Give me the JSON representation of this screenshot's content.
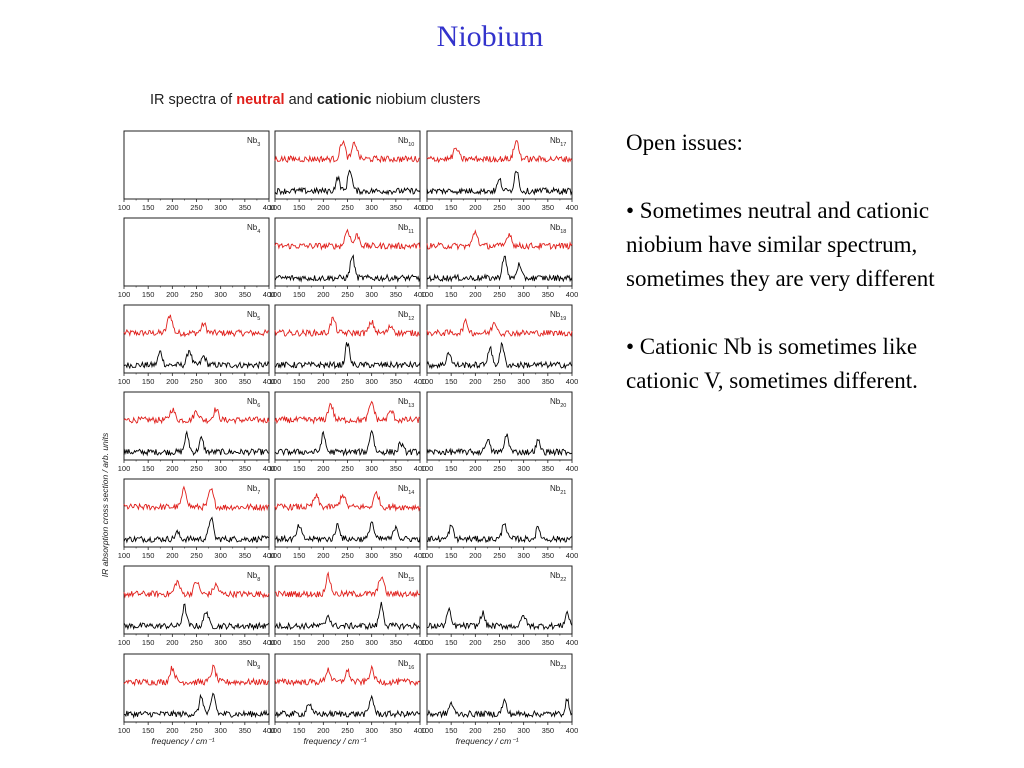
{
  "slide": {
    "title": "Niobium"
  },
  "figure": {
    "title_parts": [
      "IR spectra of ",
      "neutral",
      " and ",
      "cationic",
      " niobium clusters"
    ],
    "ylabel": "IR absorption cross section / arb. units",
    "xlabel": "frequency / cm⁻¹"
  },
  "notes": {
    "heading": "Open issues:",
    "bullets": [
      "• Sometimes neutral and cationic niobium have similar spectrum, sometimes they are very  different",
      "• Cationic Nb is sometimes like cationic V, sometimes different."
    ]
  },
  "colors": {
    "neutral": "#e0201c",
    "cationic": "#000000",
    "title": "#3333cc"
  },
  "chart_data": {
    "type": "line",
    "grid": false,
    "xlim": [
      100,
      400
    ],
    "xticks": [
      100,
      150,
      200,
      250,
      300,
      350,
      400
    ],
    "series_legend": [
      "neutral",
      "cationic"
    ],
    "panels": [
      {
        "label": "Nb",
        "n": "3",
        "neutral": false,
        "cationic": false,
        "neutral_peaks": [],
        "cationic_peaks": []
      },
      {
        "label": "Nb",
        "n": "4",
        "neutral": false,
        "cationic": false,
        "neutral_peaks": [],
        "cationic_peaks": []
      },
      {
        "label": "Nb",
        "n": "5",
        "neutral": true,
        "cationic": true,
        "neutral_peaks": [
          [
            195,
            1.0
          ],
          [
            265,
            0.5
          ]
        ],
        "cationic_peaks": [
          [
            175,
            0.6
          ],
          [
            235,
            0.7
          ],
          [
            265,
            0.4
          ]
        ]
      },
      {
        "label": "Nb",
        "n": "6",
        "neutral": true,
        "cationic": true,
        "neutral_peaks": [
          [
            200,
            0.6
          ],
          [
            250,
            0.5
          ],
          [
            290,
            0.6
          ]
        ],
        "cationic_peaks": [
          [
            230,
            0.8
          ],
          [
            260,
            0.6
          ]
        ]
      },
      {
        "label": "Nb",
        "n": "7",
        "neutral": true,
        "cationic": true,
        "neutral_peaks": [
          [
            225,
            1.0
          ],
          [
            280,
            0.95
          ]
        ],
        "cationic_peaks": [
          [
            210,
            0.3
          ],
          [
            280,
            1.0
          ]
        ]
      },
      {
        "label": "Nb",
        "n": "8",
        "neutral": true,
        "cationic": true,
        "neutral_peaks": [
          [
            210,
            0.7
          ],
          [
            250,
            0.7
          ],
          [
            290,
            0.5
          ]
        ],
        "cationic_peaks": [
          [
            225,
            0.9
          ],
          [
            270,
            0.7
          ]
        ]
      },
      {
        "label": "Nb",
        "n": "9",
        "neutral": true,
        "cationic": true,
        "neutral_peaks": [
          [
            200,
            0.8
          ],
          [
            285,
            0.8
          ]
        ],
        "cationic_peaks": [
          [
            260,
            0.8
          ],
          [
            285,
            0.9
          ]
        ]
      },
      {
        "label": "Nb",
        "n": "10",
        "neutral": true,
        "cationic": true,
        "neutral_peaks": [
          [
            240,
            1.0
          ],
          [
            265,
            0.9
          ]
        ],
        "cationic_peaks": [
          [
            230,
            0.6
          ],
          [
            255,
            1.0
          ]
        ]
      },
      {
        "label": "Nb",
        "n": "11",
        "neutral": true,
        "cationic": true,
        "neutral_peaks": [
          [
            250,
            0.9
          ],
          [
            270,
            0.6
          ]
        ],
        "cationic_peaks": [
          [
            260,
            1.0
          ]
        ]
      },
      {
        "label": "Nb",
        "n": "12",
        "neutral": true,
        "cationic": true,
        "neutral_peaks": [
          [
            220,
            0.8
          ],
          [
            300,
            0.6
          ],
          [
            340,
            0.4
          ]
        ],
        "cationic_peaks": [
          [
            250,
            1.0
          ]
        ]
      },
      {
        "label": "Nb",
        "n": "13",
        "neutral": true,
        "cationic": true,
        "neutral_peaks": [
          [
            215,
            0.9
          ],
          [
            300,
            1.0
          ],
          [
            340,
            0.5
          ]
        ],
        "cationic_peaks": [
          [
            200,
            0.8
          ],
          [
            300,
            1.0
          ],
          [
            360,
            0.4
          ]
        ]
      },
      {
        "label": "Nb",
        "n": "14",
        "neutral": true,
        "cationic": true,
        "neutral_peaks": [
          [
            185,
            0.6
          ],
          [
            240,
            0.7
          ],
          [
            310,
            0.8
          ]
        ],
        "cationic_peaks": [
          [
            150,
            0.6
          ],
          [
            230,
            0.7
          ],
          [
            300,
            0.8
          ],
          [
            350,
            0.6
          ]
        ]
      },
      {
        "label": "Nb",
        "n": "15",
        "neutral": true,
        "cationic": true,
        "neutral_peaks": [
          [
            210,
            1.0
          ],
          [
            320,
            1.0
          ]
        ],
        "cationic_peaks": [
          [
            210,
            0.5
          ],
          [
            320,
            1.0
          ]
        ]
      },
      {
        "label": "Nb",
        "n": "16",
        "neutral": true,
        "cationic": true,
        "neutral_peaks": [
          [
            210,
            0.7
          ],
          [
            250,
            0.6
          ],
          [
            300,
            0.7
          ]
        ],
        "cationic_peaks": [
          [
            170,
            0.5
          ],
          [
            300,
            0.8
          ]
        ]
      },
      {
        "label": "Nb",
        "n": "17",
        "neutral": true,
        "cationic": true,
        "neutral_peaks": [
          [
            160,
            0.6
          ],
          [
            285,
            1.0
          ]
        ],
        "cationic_peaks": [
          [
            250,
            0.5
          ],
          [
            285,
            1.0
          ]
        ]
      },
      {
        "label": "Nb",
        "n": "18",
        "neutral": true,
        "cationic": true,
        "neutral_peaks": [
          [
            200,
            0.8
          ],
          [
            270,
            0.7
          ]
        ],
        "cationic_peaks": [
          [
            260,
            1.0
          ],
          [
            290,
            0.6
          ]
        ]
      },
      {
        "label": "Nb",
        "n": "19",
        "neutral": true,
        "cationic": true,
        "neutral_peaks": [
          [
            180,
            0.6
          ],
          [
            240,
            0.6
          ]
        ],
        "cationic_peaks": [
          [
            145,
            0.6
          ],
          [
            230,
            0.8
          ],
          [
            255,
            0.9
          ]
        ]
      },
      {
        "label": "Nb",
        "n": "20",
        "neutral": false,
        "cationic": true,
        "neutral_peaks": [],
        "cationic_peaks": [
          [
            225,
            0.6
          ],
          [
            265,
            0.8
          ],
          [
            330,
            0.5
          ]
        ]
      },
      {
        "label": "Nb",
        "n": "21",
        "neutral": false,
        "cationic": true,
        "neutral_peaks": [],
        "cationic_peaks": [
          [
            150,
            0.6
          ],
          [
            260,
            0.8
          ],
          [
            330,
            0.5
          ]
        ]
      },
      {
        "label": "Nb",
        "n": "22",
        "neutral": false,
        "cationic": true,
        "neutral_peaks": [],
        "cationic_peaks": [
          [
            145,
            0.7
          ],
          [
            215,
            0.6
          ],
          [
            300,
            0.5
          ],
          [
            390,
            0.6
          ]
        ]
      },
      {
        "label": "Nb",
        "n": "23",
        "neutral": false,
        "cationic": true,
        "neutral_peaks": [],
        "cationic_peaks": [
          [
            150,
            0.5
          ],
          [
            260,
            0.6
          ],
          [
            390,
            0.6
          ]
        ]
      }
    ]
  }
}
